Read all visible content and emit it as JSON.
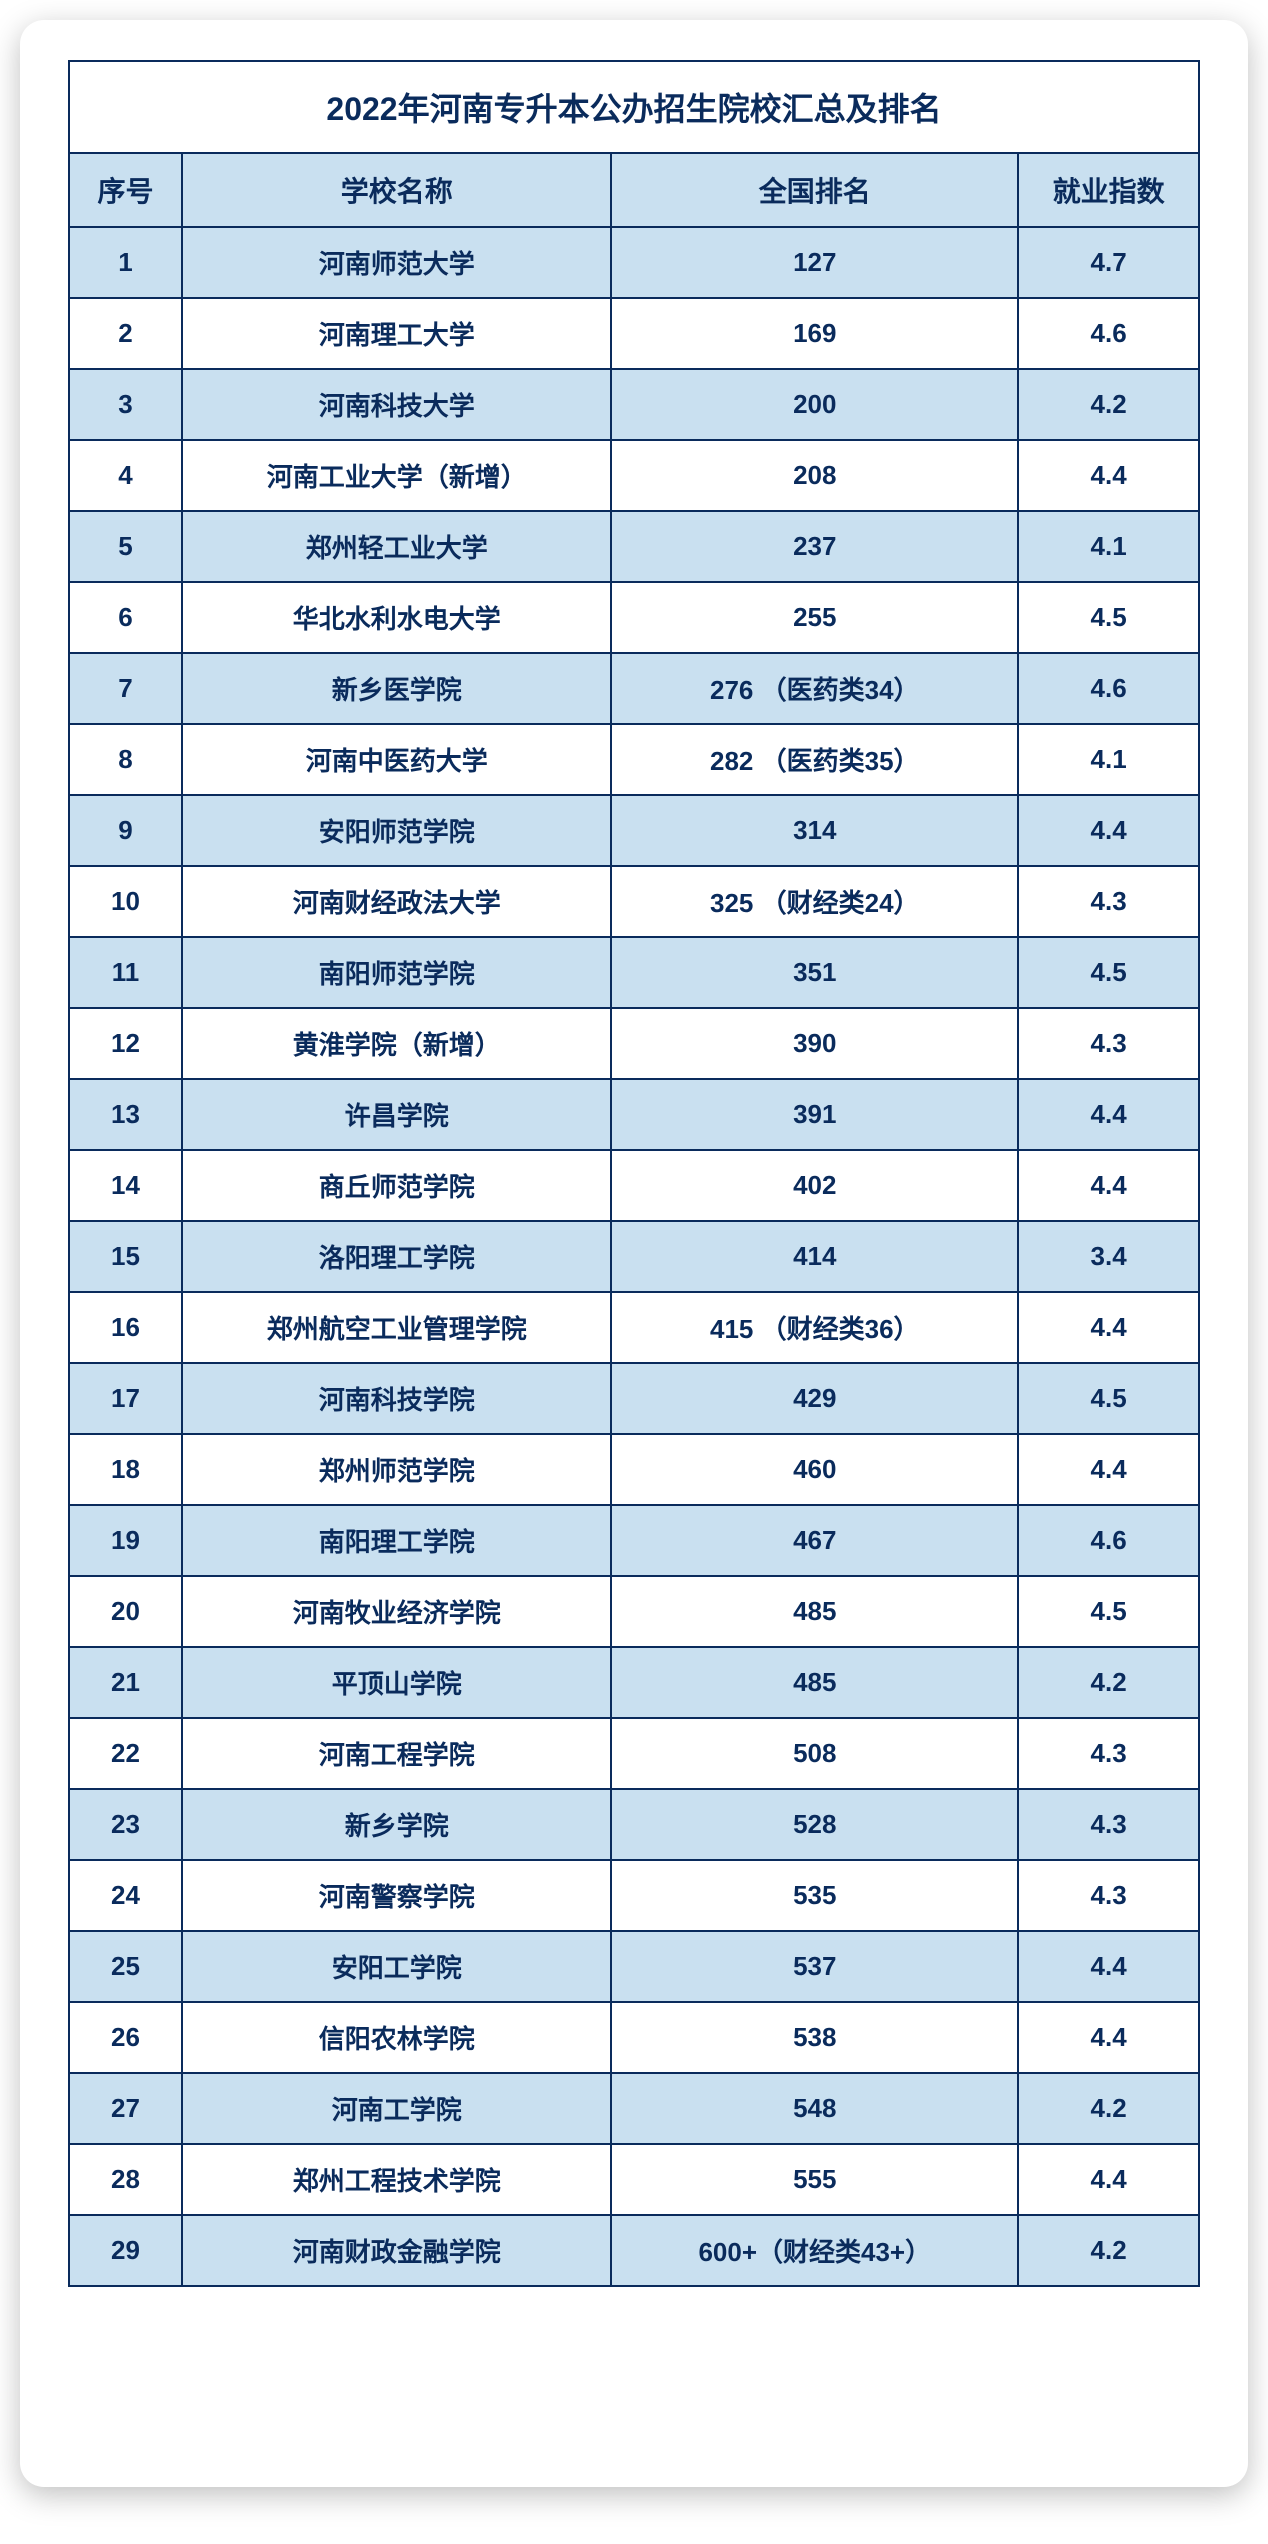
{
  "table": {
    "title": "2022年河南专升本公办招生院校汇总及排名",
    "columns": [
      "序号",
      "学校名称",
      "全国排名",
      "就业指数"
    ],
    "rows": [
      {
        "idx": "1",
        "name": "河南师范大学",
        "rank": "127",
        "emp": "4.7"
      },
      {
        "idx": "2",
        "name": "河南理工大学",
        "rank": "169",
        "emp": "4.6"
      },
      {
        "idx": "3",
        "name": "河南科技大学",
        "rank": "200",
        "emp": "4.2"
      },
      {
        "idx": "4",
        "name": "河南工业大学（新增）",
        "rank": "208",
        "emp": "4.4"
      },
      {
        "idx": "5",
        "name": "郑州轻工业大学",
        "rank": "237",
        "emp": "4.1"
      },
      {
        "idx": "6",
        "name": "华北水利水电大学",
        "rank": "255",
        "emp": "4.5"
      },
      {
        "idx": "7",
        "name": "新乡医学院",
        "rank": "276 （医药类34）",
        "emp": "4.6"
      },
      {
        "idx": "8",
        "name": "河南中医药大学",
        "rank": "282 （医药类35）",
        "emp": "4.1"
      },
      {
        "idx": "9",
        "name": "安阳师范学院",
        "rank": "314",
        "emp": "4.4"
      },
      {
        "idx": "10",
        "name": "河南财经政法大学",
        "rank": "325 （财经类24）",
        "emp": "4.3"
      },
      {
        "idx": "11",
        "name": "南阳师范学院",
        "rank": "351",
        "emp": "4.5"
      },
      {
        "idx": "12",
        "name": "黄淮学院（新增）",
        "rank": "390",
        "emp": "4.3"
      },
      {
        "idx": "13",
        "name": "许昌学院",
        "rank": "391",
        "emp": "4.4"
      },
      {
        "idx": "14",
        "name": "商丘师范学院",
        "rank": "402",
        "emp": "4.4"
      },
      {
        "idx": "15",
        "name": "洛阳理工学院",
        "rank": "414",
        "emp": "3.4"
      },
      {
        "idx": "16",
        "name": "郑州航空工业管理学院",
        "rank": "415 （财经类36）",
        "emp": "4.4"
      },
      {
        "idx": "17",
        "name": "河南科技学院",
        "rank": "429",
        "emp": "4.5"
      },
      {
        "idx": "18",
        "name": "郑州师范学院",
        "rank": "460",
        "emp": "4.4"
      },
      {
        "idx": "19",
        "name": "南阳理工学院",
        "rank": "467",
        "emp": "4.6"
      },
      {
        "idx": "20",
        "name": "河南牧业经济学院",
        "rank": "485",
        "emp": "4.5"
      },
      {
        "idx": "21",
        "name": "平顶山学院",
        "rank": "485",
        "emp": "4.2"
      },
      {
        "idx": "22",
        "name": "河南工程学院",
        "rank": "508",
        "emp": "4.3"
      },
      {
        "idx": "23",
        "name": "新乡学院",
        "rank": "528",
        "emp": "4.3"
      },
      {
        "idx": "24",
        "name": "河南警察学院",
        "rank": "535",
        "emp": "4.3"
      },
      {
        "idx": "25",
        "name": "安阳工学院",
        "rank": "537",
        "emp": "4.4"
      },
      {
        "idx": "26",
        "name": "信阳农林学院",
        "rank": "538",
        "emp": "4.4"
      },
      {
        "idx": "27",
        "name": "河南工学院",
        "rank": "548",
        "emp": "4.2"
      },
      {
        "idx": "28",
        "name": "郑州工程技术学院",
        "rank": "555",
        "emp": "4.4"
      },
      {
        "idx": "29",
        "name": "河南财政金融学院",
        "rank": "600+（财经类43+）",
        "emp": "4.2"
      }
    ],
    "styling": {
      "type": "table",
      "border_color": "#0a2b5c",
      "text_color": "#0a2b5c",
      "row_alt_bg": "#c9e0f0",
      "row_bg": "#ffffff",
      "header_bg": "#c9e0f0",
      "title_fontsize": 32,
      "header_fontsize": 28,
      "cell_fontsize": 26,
      "font_weight": "bold",
      "column_widths_pct": [
        10,
        38,
        36,
        16
      ],
      "card_border_radius": 24,
      "card_shadow": "0 8px 30px rgba(0,0,0,0.25)"
    }
  }
}
